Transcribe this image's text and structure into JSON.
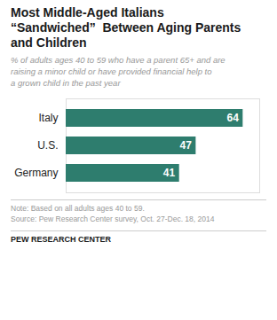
{
  "chart_data": {
    "type": "bar",
    "orientation": "horizontal",
    "title": "Most Middle-Aged Italians\n“Sandwiched”  Between Aging Parents\nand Children",
    "subtitle": "% of adults ages 40 to 59 who have a parent 65+ and are\nraising a minor child or have provided financial help to\na grown child in the past year",
    "categories": [
      "Italy",
      "U.S.",
      "Germany"
    ],
    "values": [
      64,
      47,
      41
    ],
    "color": "#2e7d6e",
    "xlim": [
      0,
      70
    ],
    "data_labels": true,
    "tick_labels": "y",
    "grid": false,
    "annotations": [
      "Note: Based on all adults ages 40 to 59.",
      "Source: Pew Research Center survey, Oct. 27-Dec. 18, 2014",
      "PEW RESEARCH CENTER"
    ]
  }
}
